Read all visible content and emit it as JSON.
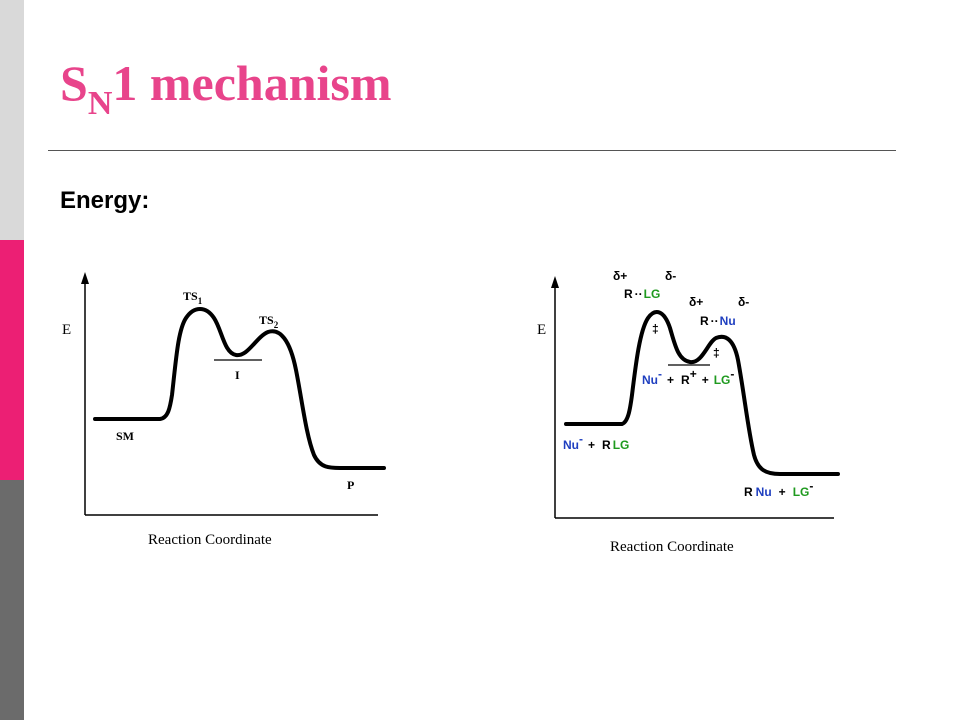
{
  "slide": {
    "title_main": "S",
    "title_sub": "N",
    "title_rest": "1 mechanism",
    "subtitle": "Energy:",
    "colors": {
      "title": "#e8448b",
      "band_top": "#d9d9d9",
      "band_mid": "#ec1f74",
      "band_bot": "#6b6b6b",
      "nu_blue": "#1f3fc0",
      "lg_green": "#1f9a1f"
    }
  },
  "diagram_left": {
    "y_axis_label": "E",
    "x_axis_label": "Reaction Coordinate",
    "ts1_label": "TS",
    "ts1_sub": "1",
    "ts2_label": "TS",
    "ts2_sub": "2",
    "intermediate_label": "I",
    "start_label": "SM",
    "product_label": "P"
  },
  "diagram_right": {
    "y_axis_label": "E",
    "x_axis_label": "Reaction Coordinate",
    "ts1_delta_plus": "δ+",
    "ts1_delta_minus": "δ-",
    "ts1_r": "R",
    "ts1_dots": "··",
    "ts1_lg": "LG",
    "ts1_dagger": "‡",
    "ts2_delta_plus": "δ+",
    "ts2_delta_minus": "δ-",
    "ts2_r": "R",
    "ts2_dots": "··",
    "ts2_nu": "Nu",
    "ts2_dagger": "‡",
    "int_nu": "Nu",
    "int_nu_charge": "-",
    "int_plus1": "+",
    "int_r": "R",
    "int_r_charge": "+",
    "int_plus2": "+",
    "int_lg": "LG",
    "int_lg_charge": "-",
    "start_nu": "Nu",
    "start_nu_charge": "-",
    "start_plus": "+",
    "start_r": "R",
    "start_lg": "LG",
    "prod_r": "R",
    "prod_nu": "Nu",
    "prod_plus": "+",
    "prod_lg": "LG",
    "prod_lg_charge": "-"
  }
}
